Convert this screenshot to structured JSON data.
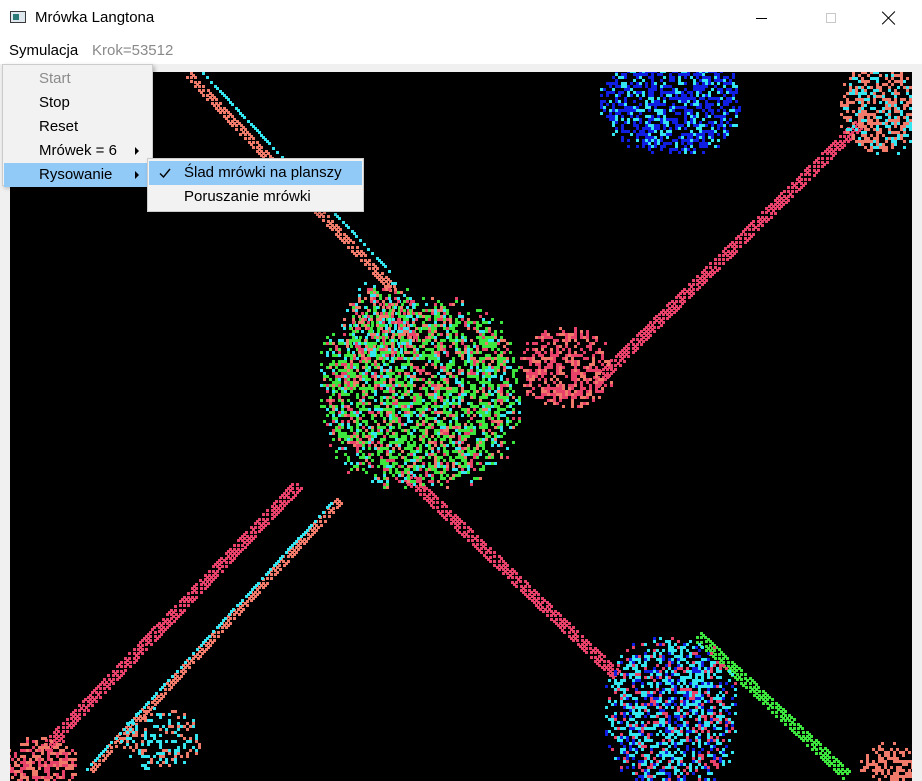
{
  "window": {
    "title": "Mrówka Langtona",
    "icon": "app-window-icon",
    "controls": [
      "minimize-icon",
      "maximize-icon",
      "close-icon"
    ]
  },
  "menubar": {
    "menu_label": "Symulacja",
    "step_text": "Krok=53512"
  },
  "menu": {
    "items": [
      {
        "label": "Start",
        "enabled": false
      },
      {
        "label": "Stop",
        "enabled": true
      },
      {
        "label": "Reset",
        "enabled": true
      },
      {
        "label": "Mrówek = 6",
        "enabled": true,
        "submenu": true
      },
      {
        "label": "Rysowanie",
        "enabled": true,
        "submenu": true,
        "highlighted": true
      }
    ]
  },
  "submenu": {
    "items": [
      {
        "label": "Ślad mrówki na planszy",
        "checked": true,
        "highlighted": true
      },
      {
        "label": "Poruszanie mrówki",
        "checked": false
      }
    ]
  },
  "colors": {
    "canvas_bg": "#000000",
    "ant_red": "#e8416a",
    "ant_salmon": "#f07b6b",
    "ant_cyan": "#33e6f0",
    "ant_blue": "#0f1ee0",
    "ant_green": "#3de63d",
    "menu_highlight": "#91c9f7"
  }
}
